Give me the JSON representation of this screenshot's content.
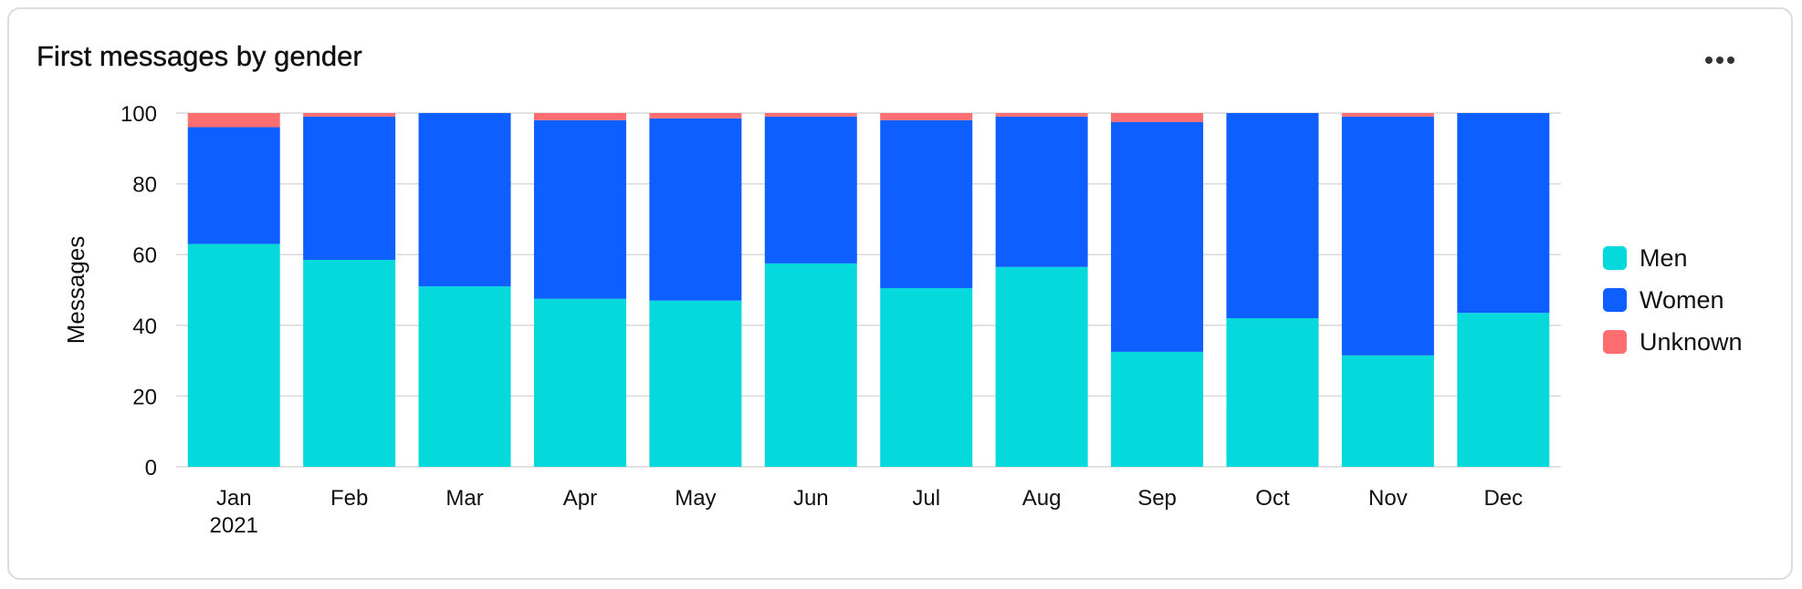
{
  "widget": {
    "title": "First messages by gender",
    "menu_icon": "more-horizontal-icon"
  },
  "chart_data": {
    "type": "bar",
    "stacked": true,
    "categories": [
      "Jan",
      "Feb",
      "Mar",
      "Apr",
      "May",
      "Jun",
      "Jul",
      "Aug",
      "Sep",
      "Oct",
      "Nov",
      "Dec"
    ],
    "category_sublabels": [
      "2021",
      "",
      "",
      "",
      "",
      "",
      "",
      "",
      "",
      "",
      "",
      ""
    ],
    "series": [
      {
        "name": "Men",
        "color": "#06d9dc",
        "values": [
          63,
          58.5,
          51,
          47.5,
          47,
          57.5,
          50.5,
          56.5,
          32.5,
          42,
          31.5,
          43.5
        ]
      },
      {
        "name": "Women",
        "color": "#0d5fff",
        "values": [
          33,
          40.5,
          49,
          50.5,
          51.5,
          41.5,
          47.5,
          42.5,
          65,
          58,
          67.5,
          56.5
        ]
      },
      {
        "name": "Unknown",
        "color": "#fe6d6f",
        "values": [
          4,
          1,
          0,
          2,
          1.5,
          1,
          2,
          1,
          2.5,
          0,
          1,
          0
        ]
      }
    ],
    "xlabel": "",
    "ylabel": "Messages",
    "ylim": [
      0,
      100
    ],
    "yticks": [
      0,
      20,
      40,
      60,
      80,
      100
    ],
    "grid": true,
    "legend_position": "right"
  }
}
